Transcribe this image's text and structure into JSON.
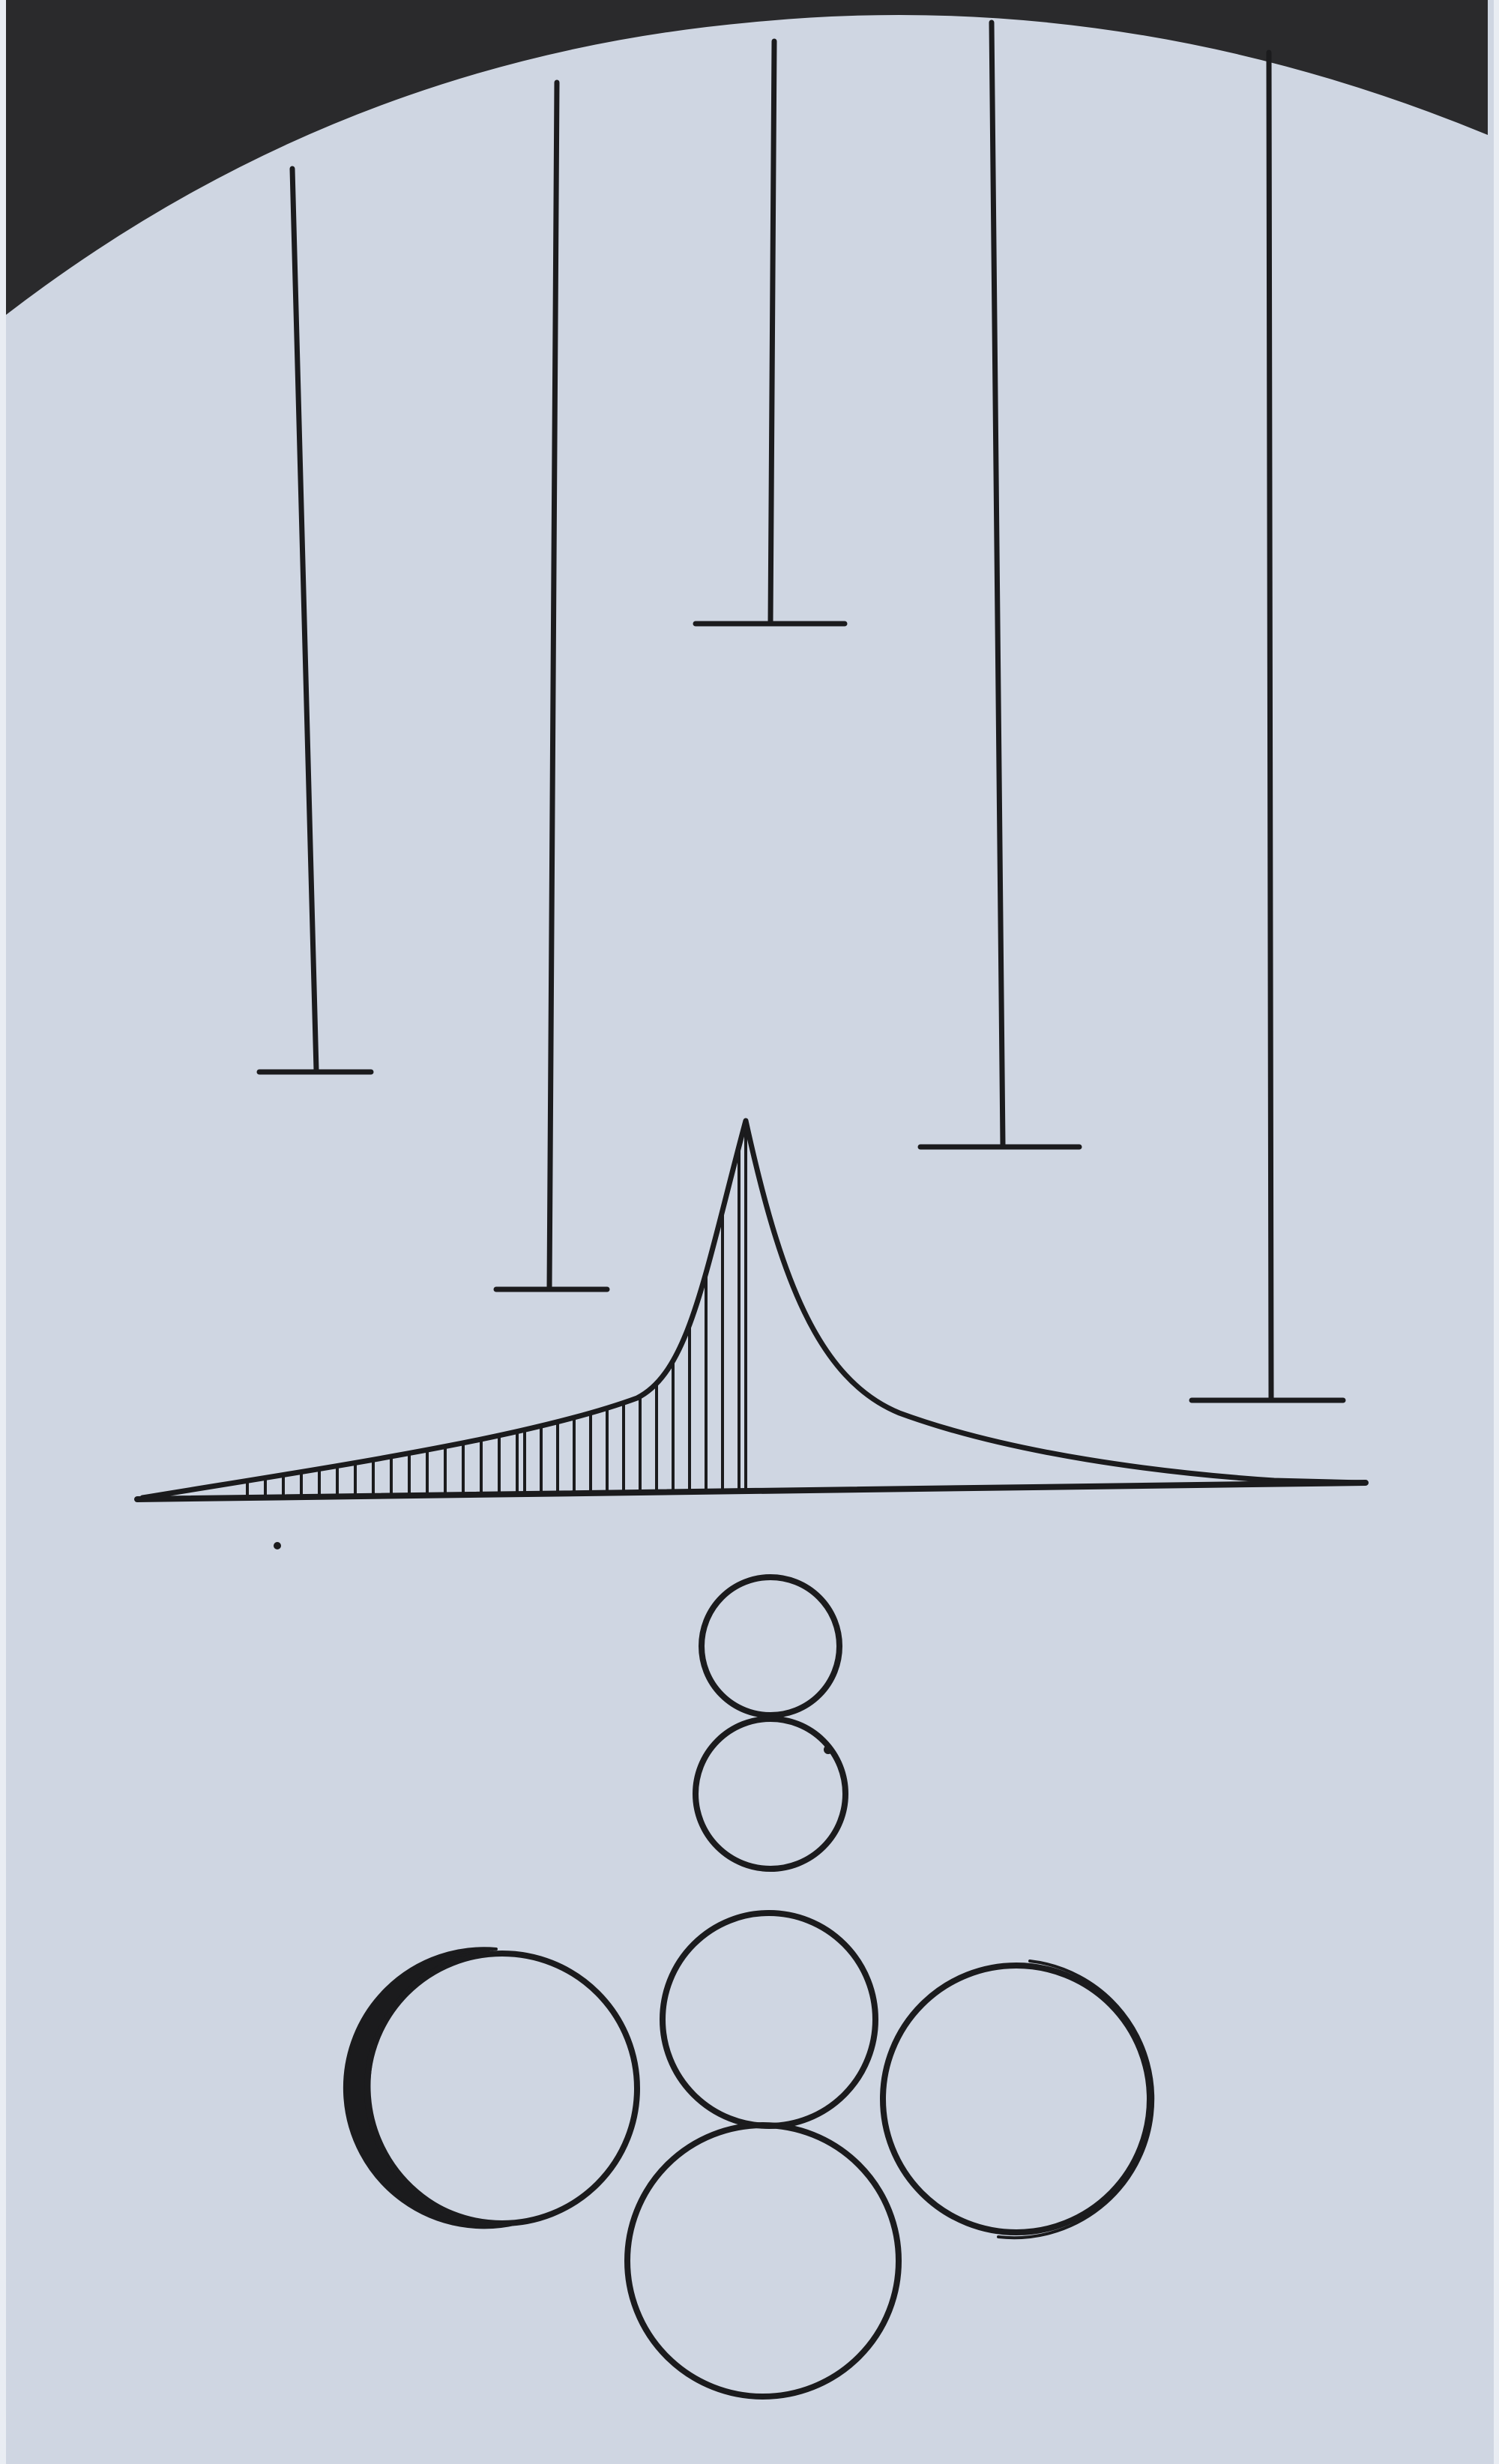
{
  "colors": {
    "paper": "#cfd6e2",
    "paper_edge": "#e9edf3",
    "ink": "#1b1b1d",
    "dark_band": "#2a2a2c"
  },
  "elements": {
    "top_band": "dark-arc-band",
    "pendulums": [
      "pendulum-1",
      "pendulum-2",
      "pendulum-3",
      "pendulum-4",
      "pendulum-5"
    ],
    "curve": "peak-curve-with-hatching",
    "circles": [
      "circle-top",
      "circle-upper-middle",
      "circle-center",
      "circle-bottom",
      "crescent-left",
      "crescent-right"
    ]
  }
}
